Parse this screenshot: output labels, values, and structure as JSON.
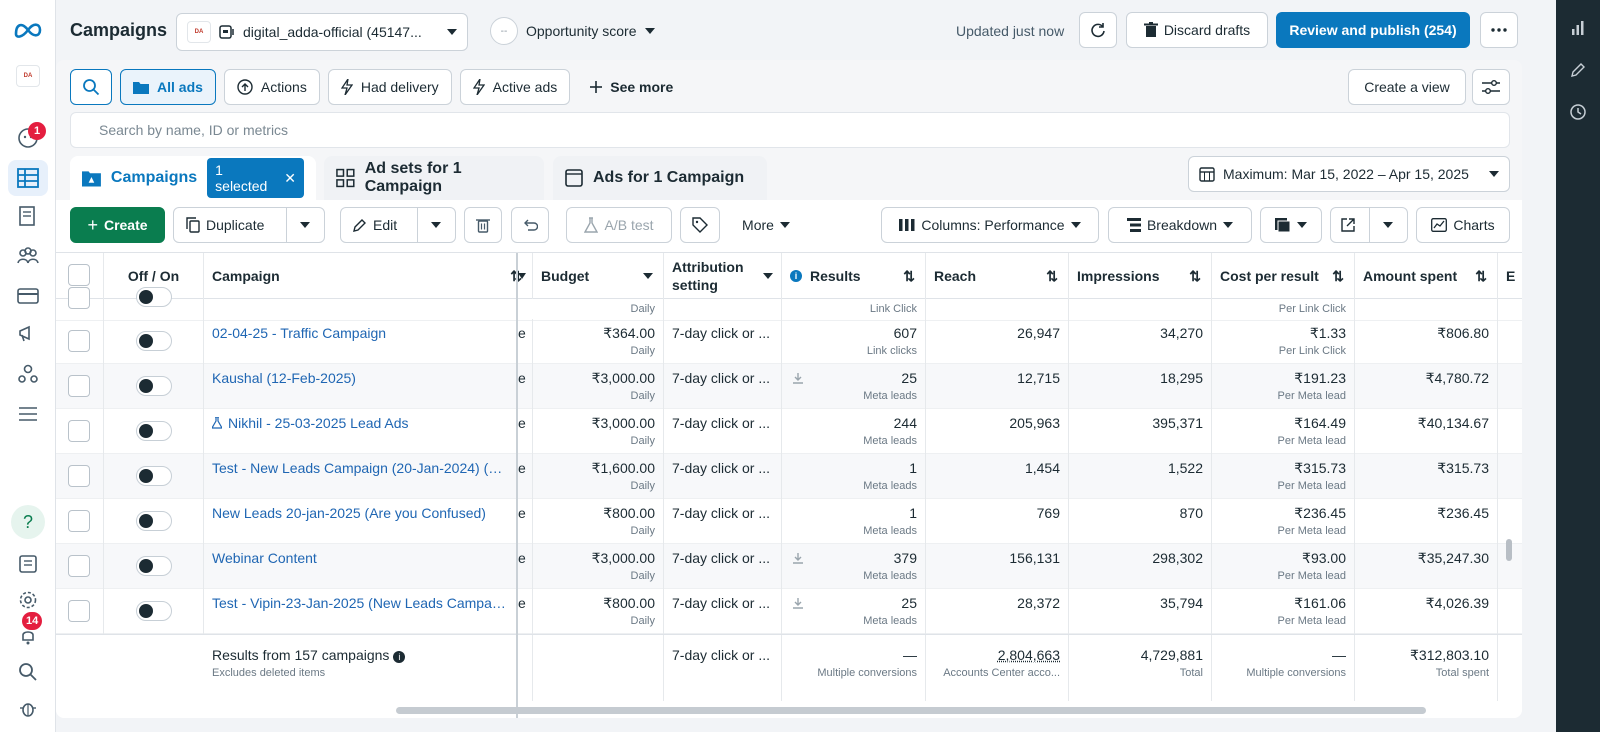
{
  "header": {
    "title": "Campaigns",
    "account": "digital_adda-official (45147...",
    "account_logo_text": "DA",
    "opportunity": "Opportunity score",
    "opportunity_score": "--",
    "updated": "Updated just now",
    "discard": "Discard drafts",
    "publish": "Review and publish (254)"
  },
  "nav": {
    "messages_badge": "1",
    "notifications_badge": "14"
  },
  "filters": {
    "all_ads": "All ads",
    "actions": "Actions",
    "had_delivery": "Had delivery",
    "active_ads": "Active ads",
    "see_more": "See more",
    "create_view": "Create a view",
    "search_placeholder": "Search by name, ID or metrics"
  },
  "tabs": {
    "campaigns": "Campaigns",
    "selected": "1 selected",
    "adsets": "Ad sets for 1 Campaign",
    "ads": "Ads for 1 Campaign",
    "date_range": "Maximum: Mar 15, 2022 – Apr 15, 2025"
  },
  "toolbar": {
    "create": "Create",
    "duplicate": "Duplicate",
    "edit": "Edit",
    "ab_test": "A/B test",
    "more": "More",
    "columns": "Columns: Performance",
    "breakdown": "Breakdown",
    "charts": "Charts"
  },
  "columns": {
    "offon": "Off / On",
    "campaign": "Campaign",
    "budget": "Budget",
    "attribution": "Attribution setting",
    "results": "Results",
    "reach": "Reach",
    "impressions": "Impressions",
    "cost": "Cost per result",
    "spent": "Amount spent",
    "next": "E"
  },
  "partial_row": {
    "budget_sub": "Daily",
    "results_sub": "Link Click",
    "cost_sub": "Per Link Click"
  },
  "rows": [
    {
      "name": "02-04-25 - Traffic Campaign",
      "d": "e",
      "budget": "₹364.00",
      "budget_sub": "Daily",
      "attr": "7-day click or ...",
      "results": "607",
      "results_sub": "Link clicks",
      "reach": "26,947",
      "impr": "34,270",
      "cost": "₹1.33",
      "cost_sub": "Per Link Click",
      "spent": "₹806.80"
    },
    {
      "name": "Kaushal (12-Feb-2025)",
      "d": "e",
      "budget": "₹3,000.00",
      "budget_sub": "Daily",
      "attr": "7-day click or ...",
      "results": "25",
      "results_sub": "Meta leads",
      "reach": "12,715",
      "impr": "18,295",
      "cost": "₹191.23",
      "cost_sub": "Per Meta lead",
      "spent": "₹4,780.72"
    },
    {
      "name": "Nikhil - 25-03-2025 Lead Ads",
      "d": "e",
      "budget": "₹3,000.00",
      "budget_sub": "Daily",
      "attr": "7-day click or ...",
      "results": "244",
      "results_sub": "Meta leads",
      "reach": "205,963",
      "impr": "395,371",
      "cost": "₹164.49",
      "cost_sub": "Per Meta lead",
      "spent": "₹40,134.67"
    },
    {
      "name": "Test - New Leads Campaign (20-Jan-2024) (do ...",
      "d": "e",
      "budget": "₹1,600.00",
      "budget_sub": "Daily",
      "attr": "7-day click or ...",
      "results": "1",
      "results_sub": "Meta leads",
      "reach": "1,454",
      "impr": "1,522",
      "cost": "₹315.73",
      "cost_sub": "Per Meta lead",
      "spent": "₹315.73"
    },
    {
      "name": "New Leads 20-jan-2025 (Are you Confused)",
      "d": "e",
      "budget": "₹800.00",
      "budget_sub": "Daily",
      "attr": "7-day click or ...",
      "results": "1",
      "results_sub": "Meta leads",
      "reach": "769",
      "impr": "870",
      "cost": "₹236.45",
      "cost_sub": "Per Meta lead",
      "spent": "₹236.45"
    },
    {
      "name": "Webinar Content",
      "d": "e",
      "budget": "₹3,000.00",
      "budget_sub": "Daily",
      "attr": "7-day click or ...",
      "results": "379",
      "results_sub": "Meta leads",
      "reach": "156,131",
      "impr": "298,302",
      "cost": "₹93.00",
      "cost_sub": "Per Meta lead",
      "spent": "₹35,247.30"
    },
    {
      "name": "Test - Vipin-23-Jan-2025 (New Leads Campaig...",
      "d": "e",
      "budget": "₹800.00",
      "budget_sub": "Daily",
      "attr": "7-day click or ...",
      "results": "25",
      "results_sub": "Meta leads",
      "reach": "28,372",
      "impr": "35,794",
      "cost": "₹161.06",
      "cost_sub": "Per Meta lead",
      "spent": "₹4,026.39"
    }
  ],
  "footer": {
    "label": "Results from 157 campaigns",
    "sub": "Excludes deleted items",
    "attr": "7-day click or ...",
    "results": "—",
    "results_sub": "Multiple conversions",
    "reach": "2,804,663",
    "reach_sub": "Accounts Center acco...",
    "impr": "4,729,881",
    "impr_sub": "Total",
    "cost": "—",
    "cost_sub": "Multiple conversions",
    "spent": "₹312,803.10",
    "spent_sub": "Total spent"
  }
}
